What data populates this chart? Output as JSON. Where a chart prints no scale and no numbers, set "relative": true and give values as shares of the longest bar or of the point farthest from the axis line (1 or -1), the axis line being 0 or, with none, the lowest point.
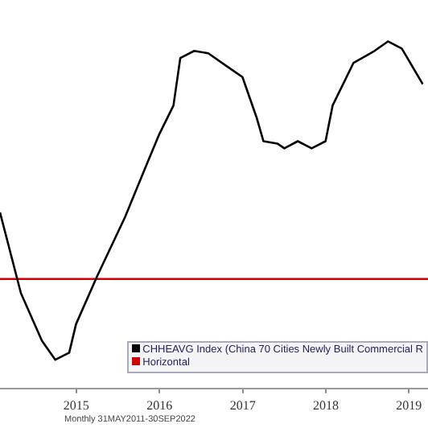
{
  "chart_data": {
    "type": "line",
    "relative": true,
    "x": [
      "2014-08",
      "2014-11",
      "2015-02",
      "2015-04",
      "2015-06",
      "2015-07",
      "2015-10",
      "2016-02",
      "2016-05",
      "2016-07",
      "2016-09",
      "2016-10",
      "2016-12",
      "2017-02",
      "2017-05",
      "2017-07",
      "2017-09",
      "2017-10",
      "2017-12",
      "2018-01",
      "2018-03",
      "2018-05",
      "2018-07",
      "2018-08",
      "2018-11",
      "2019-02",
      "2019-04",
      "2019-06",
      "2019-09"
    ],
    "series": [
      {
        "name": "CHHEAVG Index (China 70 Cities Newly Built Commercial R",
        "color": "#000000",
        "values": [
          0.28,
          -0.06,
          -0.26,
          -0.34,
          -0.31,
          -0.19,
          0.01,
          0.26,
          0.47,
          0.61,
          0.73,
          0.93,
          0.96,
          0.95,
          0.89,
          0.85,
          0.68,
          0.58,
          0.57,
          0.55,
          0.58,
          0.55,
          0.58,
          0.73,
          0.91,
          0.96,
          1,
          0.97,
          0.82
        ]
      },
      {
        "name": "Horizontal",
        "color": "#cc0000",
        "x": [
          "2014-08-01",
          "2019-09-24"
        ],
        "values": [
          0,
          0
        ]
      }
    ],
    "xlim": [
      "2014-08-01",
      "2019-09-24"
    ],
    "xticks": [
      {
        "value": "2015-07-02",
        "label": "2015"
      },
      {
        "value": "2016-07-02",
        "label": "2016"
      },
      {
        "value": "2017-07-02",
        "label": "2017"
      },
      {
        "value": "2018-07-02",
        "label": "2018"
      },
      {
        "value": "2019-07-02",
        "label": "2019"
      }
    ],
    "legend": "bottom right",
    "grid": false,
    "marker": "none",
    "line_style": "solid",
    "annotations": [
      "Monthly 31MAY2011-30SEP2022"
    ]
  }
}
